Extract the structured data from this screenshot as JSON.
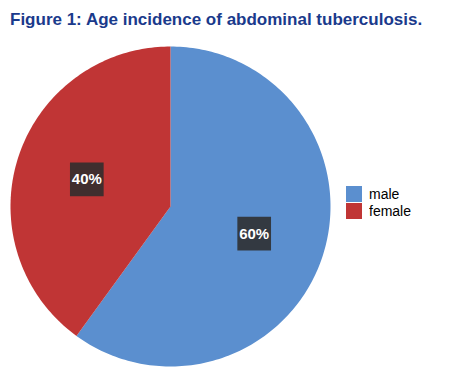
{
  "chart_data": {
    "type": "pie",
    "title": "Figure 1: Age incidence of abdominal tuberculosis.",
    "categories": [
      "male",
      "female"
    ],
    "values": [
      60,
      40
    ],
    "value_labels": [
      "60%",
      "40%"
    ],
    "colors": [
      "#5b8fcf",
      "#c03535"
    ],
    "data_labels": true,
    "legend": "right"
  }
}
